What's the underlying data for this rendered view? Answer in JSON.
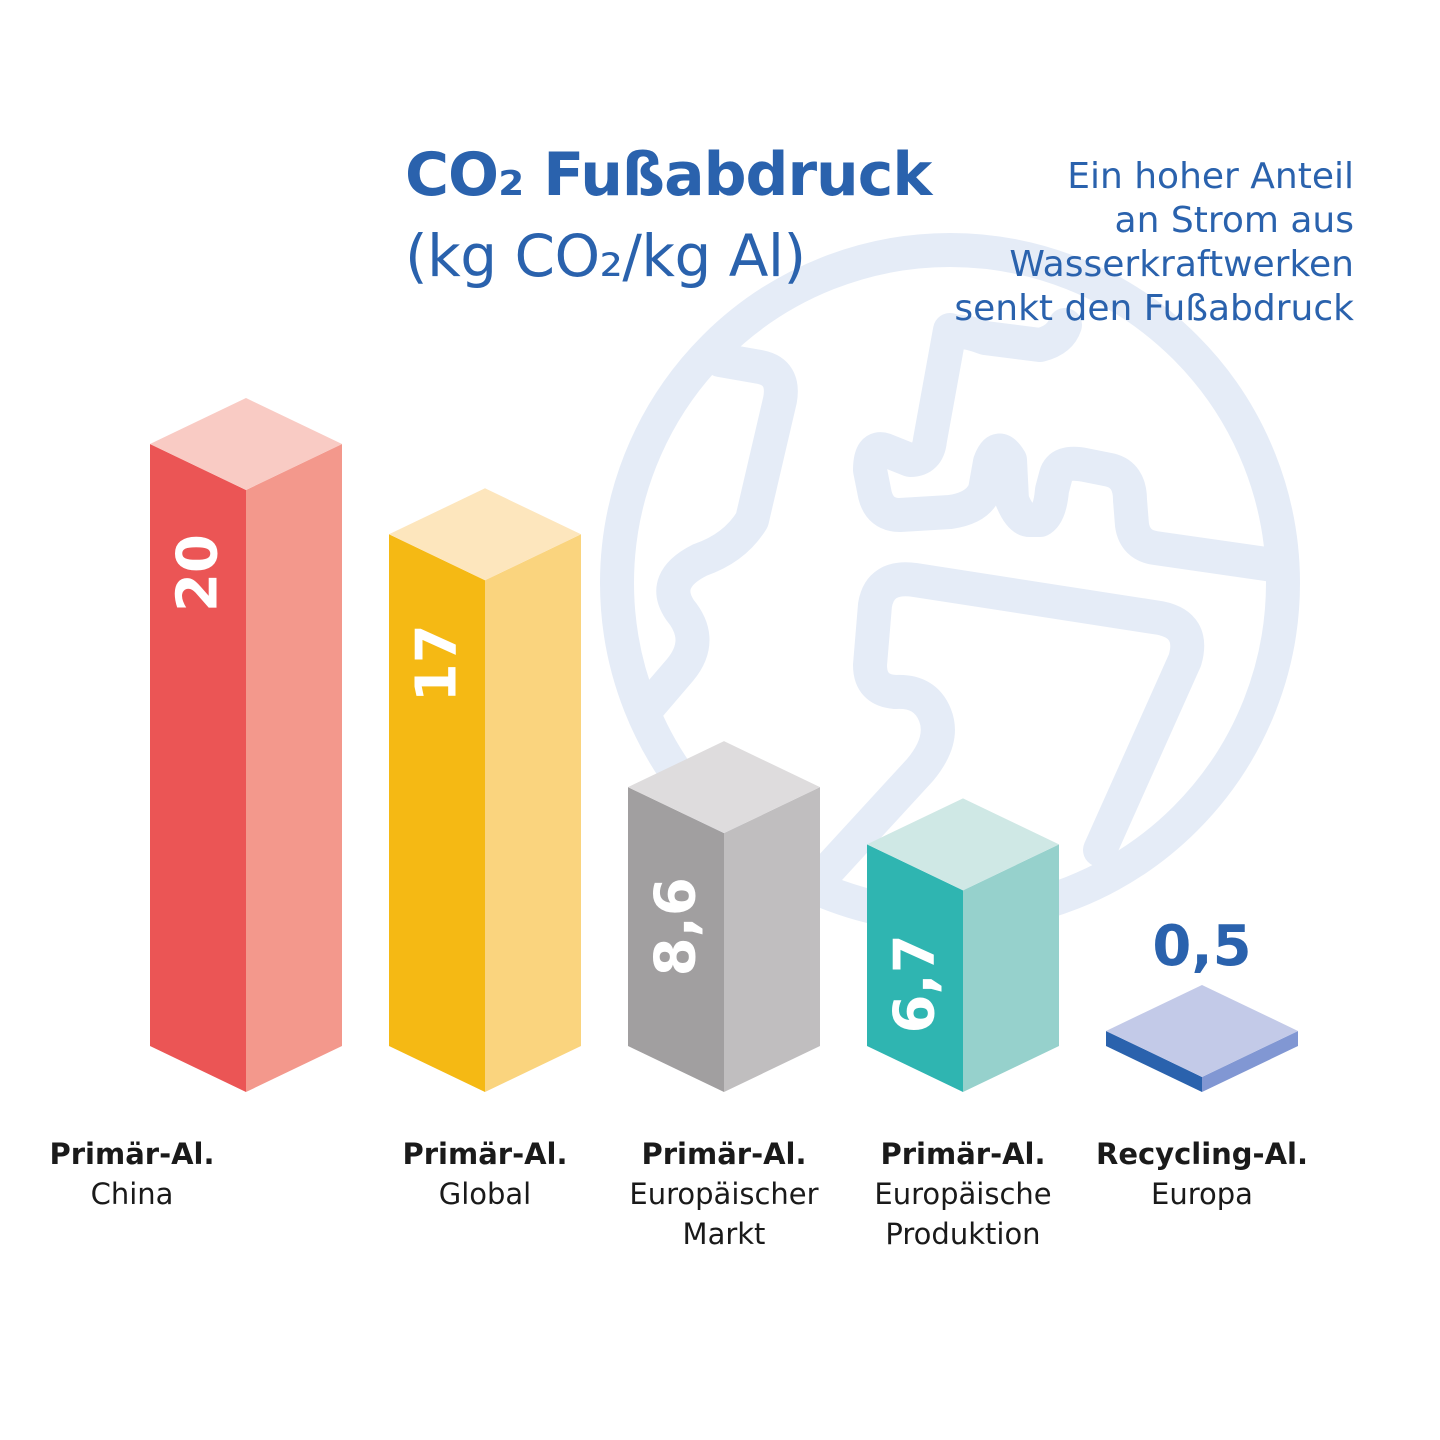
{
  "title": {
    "main": "CO₂ Fußabdruck",
    "sub": "(kg CO₂/kg Al)"
  },
  "note": {
    "lines": [
      "Ein hoher Anteil",
      "an Strom aus",
      "Wasserkraftwerken",
      "senkt den Fußabdruck"
    ]
  },
  "chart_data": {
    "type": "bar",
    "title": "CO₂ Fußabdruck",
    "ylabel": "(kg CO₂/kg Al)",
    "categories": [
      "Primär-Al. China",
      "Primär-Al. Global",
      "Primär-Al. Europäischer Markt",
      "Primär-Al. Europäische Produktion",
      "Recycling-Al. Europa"
    ],
    "values": [
      20,
      17,
      8.6,
      6.7,
      0.5
    ],
    "value_labels": [
      "20",
      "17",
      "8,6",
      "6,7",
      "0,5"
    ],
    "category_lines": [
      [
        "Primär-Al.",
        "China"
      ],
      [
        "Primär-Al.",
        "Global"
      ],
      [
        "Primär-Al.",
        "Europäischer",
        "Markt"
      ],
      [
        "Primär-Al.",
        "Europäische",
        "Produktion"
      ],
      [
        "Recycling-Al.",
        "Europa"
      ]
    ],
    "colors": [
      {
        "front": "#eb5555",
        "side": "#f3988c",
        "top": "#f9cbc4"
      },
      {
        "front": "#f5b914",
        "side": "#fad47e",
        "top": "#fde6bd"
      },
      {
        "front": "#a19fa0",
        "side": "#c0bebf",
        "top": "#dedcdd"
      },
      {
        "front": "#2fb5b1",
        "side": "#96d1cc",
        "top": "#cfe8e5"
      },
      {
        "front": "#2a62ad",
        "side": "#8197d3",
        "top": "#c3cae8"
      }
    ],
    "grid": false,
    "legend": "none"
  },
  "globe": {
    "icon": "globe-icon",
    "color": "#e5ecf7"
  }
}
